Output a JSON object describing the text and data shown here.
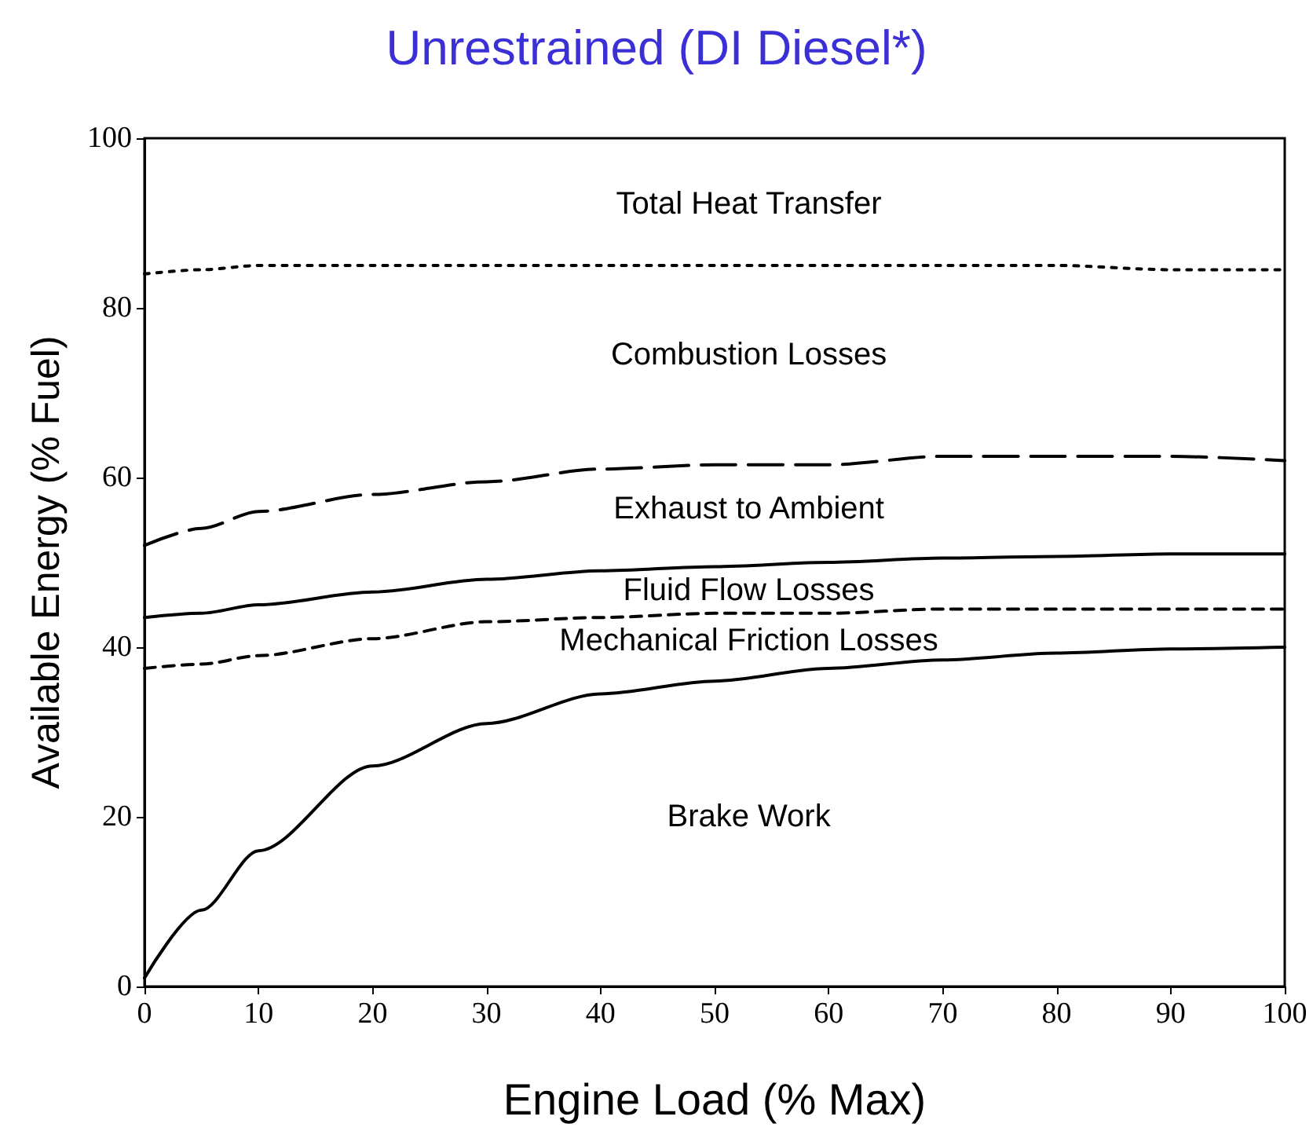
{
  "chart_data": {
    "type": "line",
    "title": "Unrestrained (DI Diesel*)",
    "xlabel": "Engine Load (% Max)",
    "ylabel": "Available Energy (% Fuel)",
    "x": [
      0,
      5,
      10,
      20,
      30,
      40,
      50,
      60,
      70,
      80,
      90,
      100
    ],
    "series": [
      {
        "color": "#000000",
        "line_style": "solid",
        "values": [
          1,
          9,
          16,
          26,
          31,
          34.5,
          36,
          37.5,
          38.5,
          39.3,
          39.8,
          40
        ]
      },
      {
        "color": "#000000",
        "line_style": "dashed",
        "values": [
          37.5,
          38,
          39,
          41,
          43,
          43.5,
          44,
          44,
          44.5,
          44.5,
          44.5,
          44.5
        ]
      },
      {
        "color": "#000000",
        "line_style": "solid",
        "values": [
          43.5,
          44,
          45,
          46.5,
          48,
          49,
          49.5,
          50,
          50.5,
          50.7,
          51,
          51
        ]
      },
      {
        "color": "#000000",
        "line_style": "longdash",
        "values": [
          52,
          54,
          56,
          58,
          59.5,
          61,
          61.5,
          61.5,
          62.5,
          62.5,
          62.5,
          62
        ]
      },
      {
        "color": "#000000",
        "line_style": "dotted",
        "values": [
          84,
          84.5,
          85,
          85,
          85,
          85,
          85,
          85,
          85,
          85,
          84.5,
          84.5
        ]
      }
    ],
    "annotations": [
      "Total Heat Transfer",
      "Combustion Losses",
      "Exhaust to Ambient",
      "Fluid Flow Losses",
      "Mechanical Friction Losses",
      "Brake Work"
    ],
    "xlim": [
      0,
      100
    ],
    "xticks": [
      0,
      10,
      20,
      30,
      40,
      50,
      60,
      70,
      80,
      90,
      100
    ],
    "ylim": [
      0,
      100
    ],
    "yticks": [
      0,
      20,
      40,
      60,
      80,
      100
    ],
    "marker": "none",
    "grid": false
  }
}
